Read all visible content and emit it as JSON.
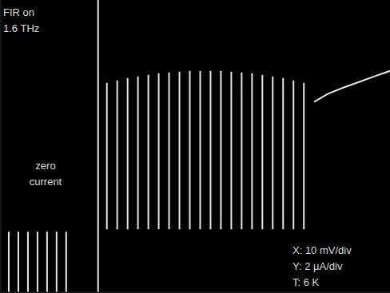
{
  "chart_data": {
    "type": "line",
    "color": "#e6e6e6",
    "grid": false,
    "tick_labels": false,
    "xlim": [
      0,
      100
    ],
    "ylim": [
      0,
      15
    ],
    "xticks": [],
    "yticks": [],
    "annotations": [
      [
        "FIR on",
        "1.6 THz"
      ],
      [
        "zero",
        "current"
      ],
      [
        "X: 10 mV/div",
        "Y: 2 µA/div",
        "T: 6 K"
      ]
    ],
    "vertical_traces": [
      {
        "x": 2.05,
        "y": [
          0,
          3.1
        ]
      },
      {
        "x": 4.51,
        "y": [
          0,
          3.1
        ]
      },
      {
        "x": 6.97,
        "y": [
          0,
          3.1
        ]
      },
      {
        "x": 9.43,
        "y": [
          0,
          3.1
        ]
      },
      {
        "x": 11.88,
        "y": [
          0,
          3.1
        ]
      },
      {
        "x": 14.34,
        "y": [
          0,
          3.1
        ]
      },
      {
        "x": 16.8,
        "y": [
          0,
          3.1
        ]
      },
      {
        "x": 25.0,
        "y": [
          0,
          15
        ]
      },
      {
        "x": 27.25,
        "y": [
          3.23,
          10.75
        ]
      },
      {
        "x": 29.91,
        "y": [
          3.23,
          10.87
        ]
      },
      {
        "x": 32.58,
        "y": [
          3.23,
          10.99
        ]
      },
      {
        "x": 35.24,
        "y": [
          3.23,
          11.08
        ]
      },
      {
        "x": 37.91,
        "y": [
          3.23,
          11.16
        ]
      },
      {
        "x": 40.57,
        "y": [
          3.23,
          11.24
        ]
      },
      {
        "x": 43.23,
        "y": [
          3.23,
          11.28
        ]
      },
      {
        "x": 45.9,
        "y": [
          3.23,
          11.32
        ]
      },
      {
        "x": 48.56,
        "y": [
          3.23,
          11.36
        ]
      },
      {
        "x": 51.23,
        "y": [
          3.23,
          11.36
        ]
      },
      {
        "x": 53.89,
        "y": [
          3.23,
          11.36
        ]
      },
      {
        "x": 56.55,
        "y": [
          3.23,
          11.36
        ]
      },
      {
        "x": 59.22,
        "y": [
          3.23,
          11.32
        ]
      },
      {
        "x": 61.88,
        "y": [
          3.23,
          11.28
        ]
      },
      {
        "x": 64.55,
        "y": [
          3.23,
          11.24
        ]
      },
      {
        "x": 67.21,
        "y": [
          3.23,
          11.16
        ]
      },
      {
        "x": 69.87,
        "y": [
          3.23,
          11.08
        ]
      },
      {
        "x": 72.54,
        "y": [
          3.23,
          10.99
        ]
      },
      {
        "x": 75.2,
        "y": [
          3.23,
          10.87
        ]
      },
      {
        "x": 77.87,
        "y": [
          3.23,
          10.75
        ]
      }
    ],
    "curve": {
      "x": [
        80.5,
        84,
        88,
        92,
        96,
        100
      ],
      "y": [
        9.77,
        10.18,
        10.5,
        10.79,
        11.08,
        11.36
      ]
    }
  }
}
